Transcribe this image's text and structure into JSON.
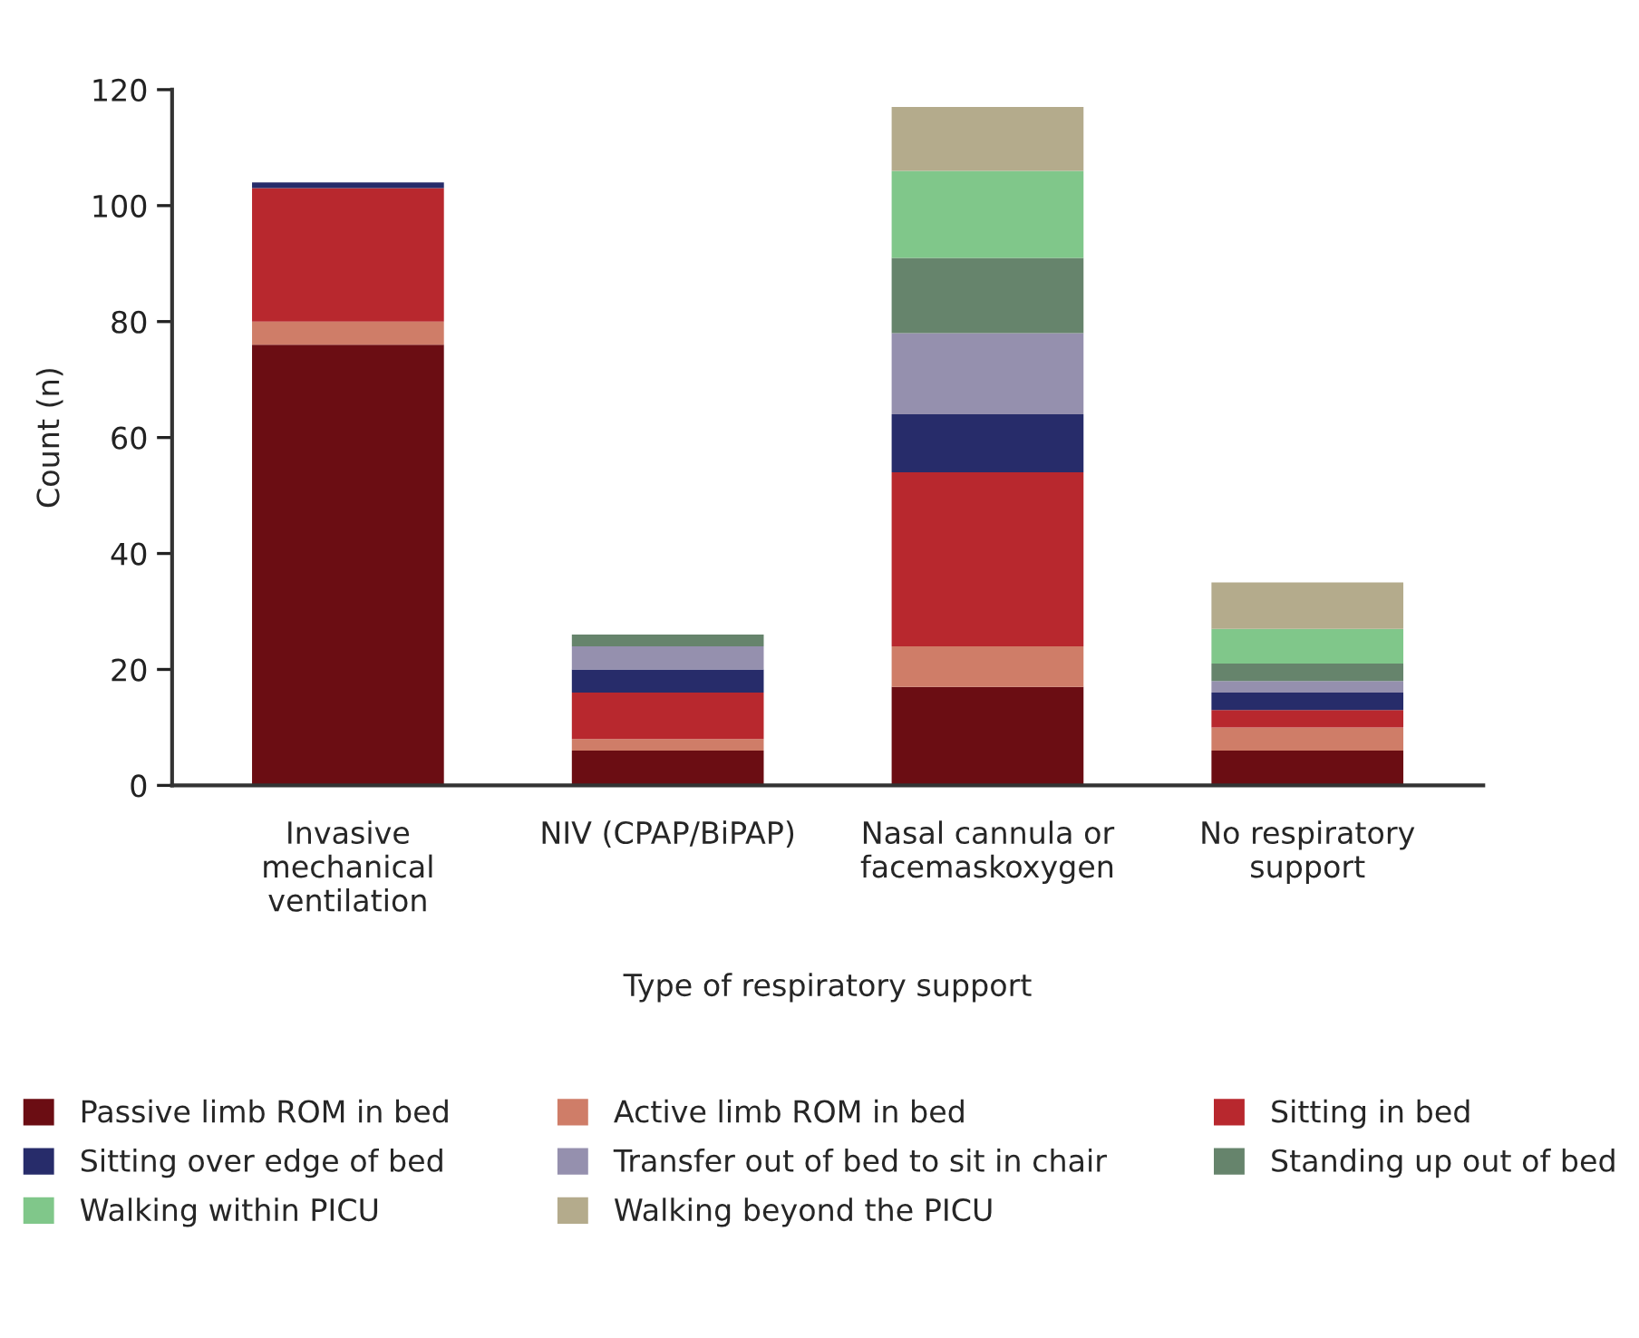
{
  "chart_data": {
    "type": "bar",
    "stacked": true,
    "xlabel": "Type of respiratory support",
    "ylabel": "Count (n)",
    "categories": [
      "Invasive\nmechanical\nventilation",
      "NIV (CPAP/BiPAP)",
      "Nasal cannula or\nfacemaskoxygen",
      "No respiratory\nsupport"
    ],
    "series": [
      {
        "name": "Passive limb ROM in bed",
        "color": "#6b0d13",
        "values": [
          76,
          6,
          17,
          6
        ]
      },
      {
        "name": "Active limb ROM in bed",
        "color": "#cf7d68",
        "values": [
          4,
          2,
          7,
          4
        ]
      },
      {
        "name": "Sitting in bed",
        "color": "#b8282e",
        "values": [
          23,
          8,
          30,
          3
        ]
      },
      {
        "name": "Sitting over edge of bed",
        "color": "#272c6a",
        "values": [
          1,
          4,
          10,
          3
        ]
      },
      {
        "name": "Transfer out of bed to sit in chair",
        "color": "#9590ae",
        "values": [
          0,
          4,
          14,
          2
        ]
      },
      {
        "name": "Standing up out of bed",
        "color": "#66846c",
        "values": [
          0,
          2,
          13,
          3
        ]
      },
      {
        "name": "Walking within PICU",
        "color": "#80c78a",
        "values": [
          0,
          0,
          15,
          6
        ]
      },
      {
        "name": "Walking beyond the PICU",
        "color": "#b4ab8c",
        "values": [
          0,
          0,
          11,
          8
        ]
      }
    ],
    "ylim": [
      0,
      120
    ],
    "yticks": [
      0,
      20,
      40,
      60,
      80,
      100,
      120
    ],
    "grid": false,
    "legend": "bottom"
  }
}
